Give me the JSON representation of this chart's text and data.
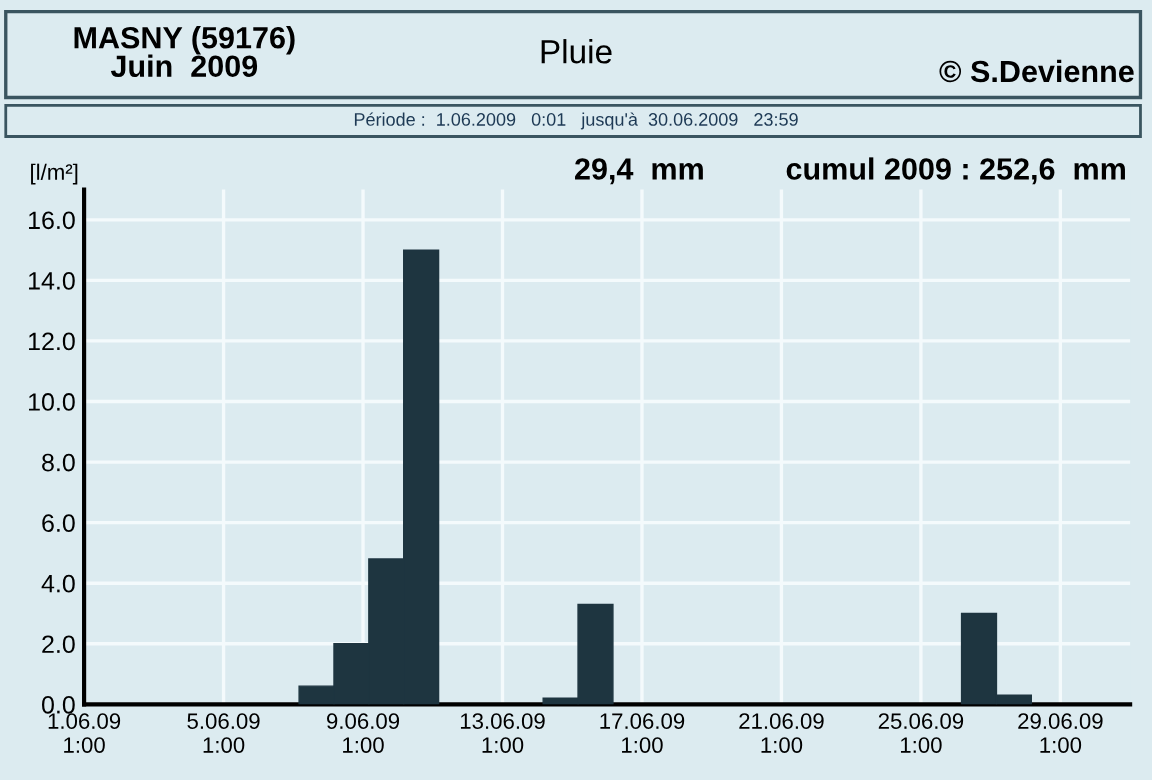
{
  "chart_data": {
    "type": "bar",
    "title": "Pluie",
    "subtitle": "Période :  1.06.2009   0:01   jusqu'à  30.06.2009   23:59",
    "ylabel": "[l/m²]",
    "annotations": [
      "MASNY (59176)\nJuin  2009",
      "© S.Devienne",
      "29,4  mm",
      "cumul 2009 : 252,6  mm"
    ],
    "x": [
      "2009-06-07T17:00",
      "2009-06-08T17:00",
      "2009-06-09T17:00",
      "2009-06-10T17:00",
      "2009-06-14T17:00",
      "2009-06-15T17:00",
      "2009-06-26T17:00",
      "2009-06-27T17:00"
    ],
    "values": [
      0.6,
      2.0,
      4.8,
      15.0,
      0.2,
      3.3,
      3.0,
      0.3
    ],
    "color": "#1e3540",
    "xlim": [
      "2009-06-01T01:00",
      "2009-07-01T01:00"
    ],
    "xticks": [
      {
        "value": "2009-06-01T01:00",
        "label": "1.06.09\n1:00"
      },
      {
        "value": "2009-06-05T01:00",
        "label": "5.06.09\n1:00"
      },
      {
        "value": "2009-06-09T01:00",
        "label": "9.06.09\n1:00"
      },
      {
        "value": "2009-06-13T01:00",
        "label": "13.06.09\n1:00"
      },
      {
        "value": "2009-06-17T01:00",
        "label": "17.06.09\n1:00"
      },
      {
        "value": "2009-06-21T01:00",
        "label": "21.06.09\n1:00"
      },
      {
        "value": "2009-06-25T01:00",
        "label": "25.06.09\n1:00"
      },
      {
        "value": "2009-06-29T01:00",
        "label": "29.06.09\n1:00"
      }
    ],
    "ylim": [
      0,
      17
    ],
    "yticks": [
      {
        "value": 0,
        "label": "0.0"
      },
      {
        "value": 2,
        "label": "2.0"
      },
      {
        "value": 4,
        "label": "4.0"
      },
      {
        "value": 6,
        "label": "6.0"
      },
      {
        "value": 8,
        "label": "8.0"
      },
      {
        "value": 10,
        "label": "10.0"
      },
      {
        "value": 12,
        "label": "12.0"
      },
      {
        "value": 14,
        "label": "14.0"
      },
      {
        "value": 16,
        "label": "16.0"
      }
    ],
    "grid": true
  }
}
